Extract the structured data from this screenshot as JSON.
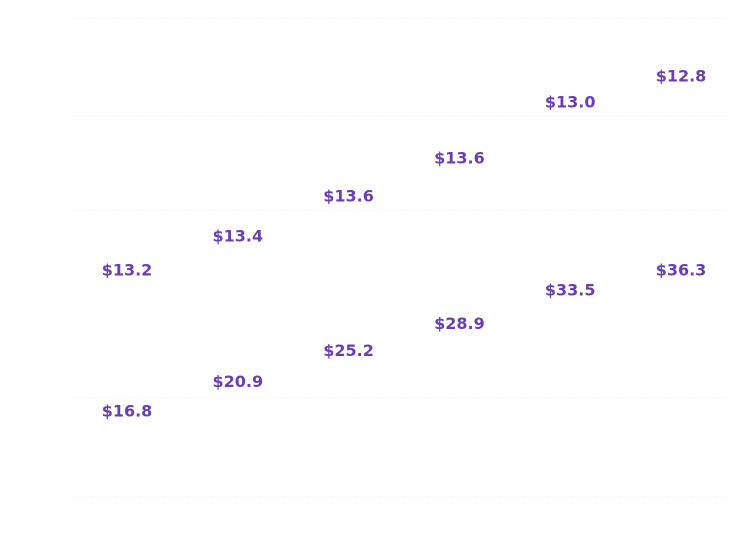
{
  "chart_data": {
    "type": "line",
    "title": "",
    "xlabel": "",
    "ylabel": "",
    "x": [
      1,
      2,
      3,
      4,
      5,
      6
    ],
    "series": [
      {
        "values": [
          13.2,
          13.4,
          13.6,
          13.6,
          13.0,
          12.8
        ],
        "labels": [
          "$13.2",
          "$13.4",
          "$13.6",
          "$13.6",
          "$13.0",
          "$12.8"
        ]
      },
      {
        "values": [
          16.8,
          20.9,
          25.2,
          28.9,
          33.5,
          36.3
        ],
        "labels": [
          "$16.8",
          "$20.9",
          "$25.2",
          "$28.9",
          "$33.5",
          "$36.3"
        ]
      }
    ],
    "grid": true,
    "legend": "none",
    "lines_visible": false,
    "colors": {
      "label": "#6a3fb5",
      "grid": "#ebebeb",
      "background": "#ffffff"
    }
  }
}
